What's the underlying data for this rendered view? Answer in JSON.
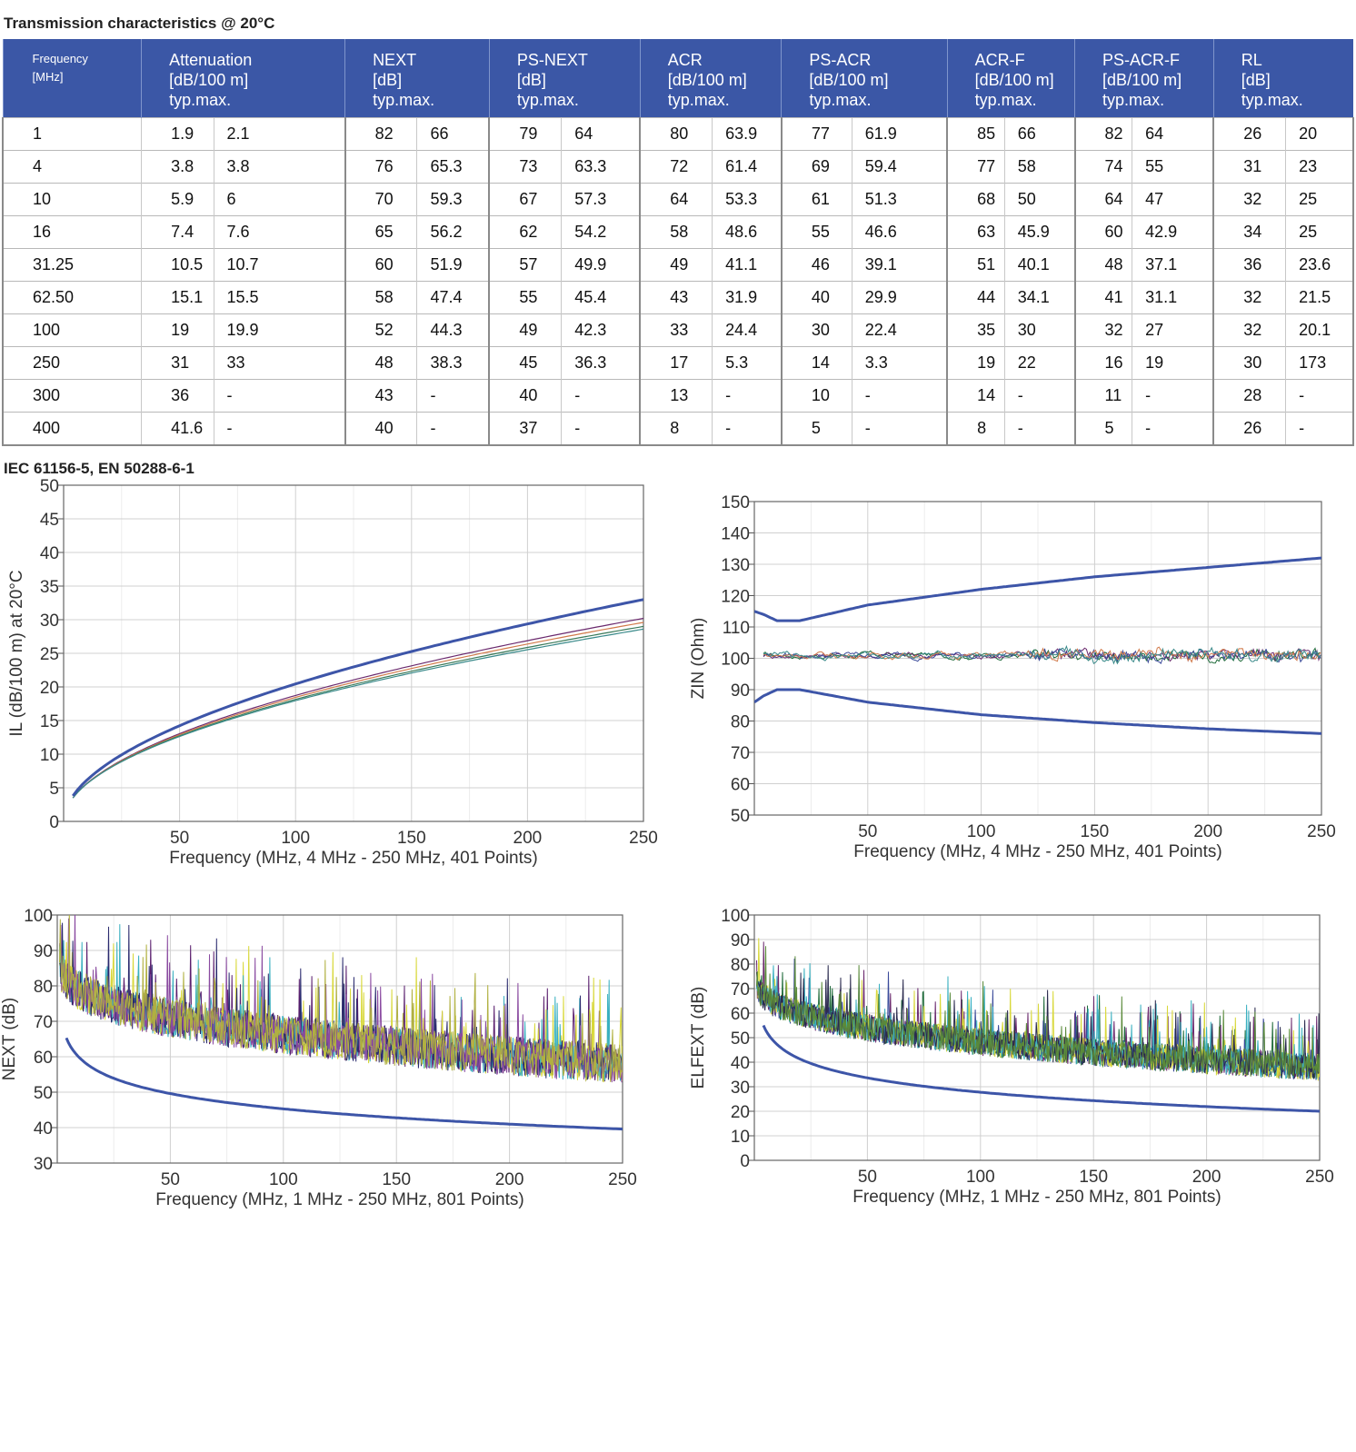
{
  "title": "Transmission characteristics @ 20°C",
  "standard": "IEC 61156-5, EN 50288-6-1",
  "table": {
    "headers": [
      "Frequency\n[MHz]",
      "Attenuation\n[dB/100 m]\ntyp.max.",
      "NEXT\n[dB]\ntyp.max.",
      "PS-NEXT\n[dB]\ntyp.max.",
      "ACR\n[dB/100 m]\ntyp.max.",
      "PS-ACR\n[dB/100 m]\ntyp.max.",
      "ACR-F\n[dB/100 m]\ntyp.max.",
      "PS-ACR-F\n[dB/100 m]\ntyp.max.",
      "RL\n[dB]\ntyp.max."
    ],
    "rows": [
      [
        "1",
        "1.9",
        "2.1",
        "82",
        "66",
        "79",
        "64",
        "80",
        "63.9",
        "77",
        "61.9",
        "85",
        "66",
        "82",
        "64",
        "26",
        "20"
      ],
      [
        "4",
        "3.8",
        "3.8",
        "76",
        "65.3",
        "73",
        "63.3",
        "72",
        "61.4",
        "69",
        "59.4",
        "77",
        "58",
        "74",
        "55",
        "31",
        "23"
      ],
      [
        "10",
        "5.9",
        "6",
        "70",
        "59.3",
        "67",
        "57.3",
        "64",
        "53.3",
        "61",
        "51.3",
        "68",
        "50",
        "64",
        "47",
        "32",
        "25"
      ],
      [
        "16",
        "7.4",
        "7.6",
        "65",
        "56.2",
        "62",
        "54.2",
        "58",
        "48.6",
        "55",
        "46.6",
        "63",
        "45.9",
        "60",
        "42.9",
        "34",
        "25"
      ],
      [
        "31.25",
        "10.5",
        "10.7",
        "60",
        "51.9",
        "57",
        "49.9",
        "49",
        "41.1",
        "46",
        "39.1",
        "51",
        "40.1",
        "48",
        "37.1",
        "36",
        "23.6"
      ],
      [
        "62.50",
        "15.1",
        "15.5",
        "58",
        "47.4",
        "55",
        "45.4",
        "43",
        "31.9",
        "40",
        "29.9",
        "44",
        "34.1",
        "41",
        "31.1",
        "32",
        "21.5"
      ],
      [
        "100",
        "19",
        "19.9",
        "52",
        "44.3",
        "49",
        "42.3",
        "33",
        "24.4",
        "30",
        "22.4",
        "35",
        "30",
        "32",
        "27",
        "32",
        "20.1"
      ],
      [
        "250",
        "31",
        "33",
        "48",
        "38.3",
        "45",
        "36.3",
        "17",
        "5.3",
        "14",
        "3.3",
        "19",
        "22",
        "16",
        "19",
        "30",
        "173"
      ],
      [
        "300",
        "36",
        "-",
        "43",
        "-",
        "40",
        "-",
        "13",
        "-",
        "10",
        "-",
        "14",
        "-",
        "11",
        "-",
        "28",
        "-"
      ],
      [
        "400",
        "41.6",
        "-",
        "40",
        "-",
        "37",
        "-",
        "8",
        "-",
        "5",
        "-",
        "8",
        "-",
        "5",
        "-",
        "26",
        "-"
      ]
    ]
  },
  "chart_data": [
    {
      "id": "il",
      "type": "line",
      "xlabel": "Frequency (MHz, 4 MHz - 250 MHz, 401 Points)",
      "ylabel": "IL (dB/100 m) at 20°C",
      "xlim": [
        0,
        250
      ],
      "ylim": [
        0,
        50
      ],
      "xticks": [
        50,
        100,
        150,
        200,
        250
      ],
      "yticks": [
        0,
        5,
        10,
        15,
        20,
        25,
        30,
        35,
        40,
        45,
        50
      ],
      "grid": true,
      "limit": {
        "kind": "power",
        "x": [
          4,
          250
        ],
        "y_at_x0": 3.8,
        "y_at_x1": 33,
        "color": "#3d55a8"
      },
      "measured": {
        "kind": "power",
        "x": [
          4,
          250
        ],
        "y_at_x0": 3.5,
        "y_at_x1": [
          30.2,
          29.6,
          29.0,
          28.6
        ],
        "colors": [
          "#6b2a6e",
          "#d17a4a",
          "#3a7a5a",
          "#3a8a8a"
        ],
        "noise": 0.0
      }
    },
    {
      "id": "zin",
      "type": "line",
      "xlabel": "Frequency (MHz, 4 MHz - 250 MHz, 401 Points)",
      "ylabel": "ZIN (Ohm)",
      "xlim": [
        0,
        250
      ],
      "ylim": [
        50,
        150
      ],
      "xticks": [
        50,
        100,
        150,
        200,
        250
      ],
      "yticks": [
        50,
        60,
        70,
        80,
        90,
        100,
        110,
        120,
        130,
        140,
        150
      ],
      "grid": true,
      "limit_upper": {
        "x": [
          0,
          4,
          10,
          20,
          50,
          100,
          150,
          200,
          250
        ],
        "y": [
          115,
          114,
          112,
          112,
          117,
          122,
          126,
          129,
          132
        ]
      },
      "limit_lower": {
        "x": [
          0,
          4,
          10,
          20,
          50,
          100,
          150,
          200,
          250
        ],
        "y": [
          86,
          88,
          90,
          90,
          86,
          82,
          79.5,
          77.5,
          76
        ]
      },
      "measured": {
        "x": [
          4,
          250
        ],
        "center": 101,
        "spread": 3,
        "colors": [
          "#1f6b3a",
          "#6b2a6e",
          "#3a4a9a",
          "#d17a4a",
          "#3a8a8a"
        ]
      }
    },
    {
      "id": "next",
      "type": "line",
      "xlabel": "Frequency (MHz, 1 MHz - 250 MHz, 801 Points)",
      "ylabel": "NEXT (dB)",
      "xlim": [
        0,
        250
      ],
      "ylim": [
        30,
        100
      ],
      "xticks": [
        50,
        100,
        150,
        200,
        250
      ],
      "yticks": [
        30,
        40,
        50,
        60,
        70,
        80,
        90,
        100
      ],
      "grid": true,
      "limit": {
        "kind": "log",
        "x": [
          4,
          250
        ],
        "y_at_x0": 65.3,
        "y_at_x1": 39.6
      },
      "measured": {
        "x": [
          1,
          250
        ],
        "start": 88,
        "end": 58,
        "spread": 8,
        "colors": [
          "#5a1f6e",
          "#d8d83a",
          "#3ab0c0",
          "#2a2a6e",
          "#8a4aa0",
          "#b0b040"
        ]
      }
    },
    {
      "id": "elfext",
      "type": "line",
      "xlabel": "Frequency (MHz, 1 MHz - 250 MHz, 801 Points)",
      "ylabel": "ELFEXT (dB)",
      "xlim": [
        0,
        250
      ],
      "ylim": [
        0,
        100
      ],
      "xticks": [
        50,
        100,
        150,
        200,
        250
      ],
      "yticks": [
        0,
        10,
        20,
        30,
        40,
        50,
        60,
        70,
        80,
        90,
        100
      ],
      "grid": true,
      "limit": {
        "kind": "log",
        "x": [
          4,
          250
        ],
        "y_at_x0": 55,
        "y_at_x1": 20
      },
      "measured": {
        "x": [
          1,
          250
        ],
        "start": 75,
        "end": 38,
        "spread": 8,
        "colors": [
          "#1f6b3a",
          "#6b2a6e",
          "#3a4a9a",
          "#d8d83a",
          "#3ab0c0",
          "#2a2a4e",
          "#5a8a3a"
        ]
      }
    }
  ]
}
